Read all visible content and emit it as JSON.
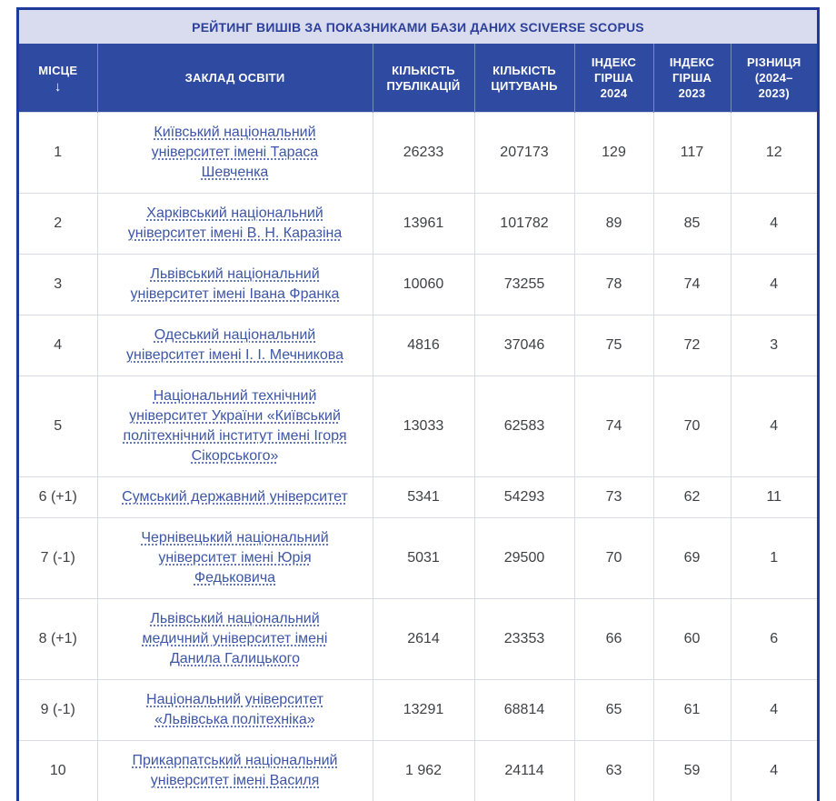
{
  "title": "РЕЙТИНГ ВИШІВ ЗА ПОКАЗНИКАМИ БАЗИ ДАНИХ SCIVERSE SCOPUS",
  "colors": {
    "outer_border": "#1f3a9b",
    "header_bg": "#2f4aa1",
    "header_text": "#ffffff",
    "title_bg": "#d8dcee",
    "title_text": "#2c3f9b",
    "link_text": "#3d56a6",
    "cell_text": "#3f4043",
    "grid_line": "#d8dbe5"
  },
  "table": {
    "sort_arrow": "↓",
    "columns": [
      {
        "label": "МІСЦЕ"
      },
      {
        "label": "ЗАКЛАД ОСВІТИ"
      },
      {
        "label": "КІЛЬКІСТЬ\nПУБЛІКАЦІЙ"
      },
      {
        "label": "КІЛЬКІСТЬ\nЦИТУВАНЬ"
      },
      {
        "label": "ІНДЕКС\nГІРША\n2024"
      },
      {
        "label": "ІНДЕКС\nГІРША\n2023"
      },
      {
        "label": "РІЗНИЦЯ\n(2024–\n2023)"
      }
    ],
    "rows": [
      {
        "place": "1",
        "name": "Київський національний\nуніверситет імені Тараса\nШевченка",
        "publications": "26233",
        "citations": "207173",
        "h2024": "129",
        "h2023": "117",
        "diff": "12"
      },
      {
        "place": "2",
        "name": "Харківський національний\nуніверситет імені В. Н. Каразіна",
        "publications": "13961",
        "citations": "101782",
        "h2024": "89",
        "h2023": "85",
        "diff": "4"
      },
      {
        "place": "3",
        "name": "Львівський національний\nуніверситет імені Івана Франка",
        "publications": "10060",
        "citations": "73255",
        "h2024": "78",
        "h2023": "74",
        "diff": "4"
      },
      {
        "place": "4",
        "name": "Одеський національний\nуніверситет імені І. І. Мечникова",
        "publications": "4816",
        "citations": "37046",
        "h2024": "75",
        "h2023": "72",
        "diff": "3"
      },
      {
        "place": "5",
        "name": "Національний технічний\nуніверситет України «Київський\nполітехнічний інститут імені Ігоря\nСікорського»",
        "publications": "13033",
        "citations": "62583",
        "h2024": "74",
        "h2023": "70",
        "diff": "4"
      },
      {
        "place": "6 (+1)",
        "name": "Сумський державний університет",
        "publications": "5341",
        "citations": "54293",
        "h2024": "73",
        "h2023": "62",
        "diff": "11"
      },
      {
        "place": "7 (-1)",
        "name": "Чернівецький національний\nуніверситет імені Юрія\nФедьковича",
        "publications": "5031",
        "citations": "29500",
        "h2024": "70",
        "h2023": "69",
        "diff": "1"
      },
      {
        "place": "8 (+1)",
        "name": "Львівський національний\nмедичний університет імені\nДанила Галицького",
        "publications": "2614",
        "citations": "23353",
        "h2024": "66",
        "h2023": "60",
        "diff": "6"
      },
      {
        "place": "9 (-1)",
        "name": "Національний університет\n«Львівська політехніка»",
        "publications": "13291",
        "citations": "68814",
        "h2024": "65",
        "h2023": "61",
        "diff": "4"
      },
      {
        "place": "10",
        "name": "Прикарпатський національний\nуніверситет імені Василя",
        "publications": "1 962",
        "citations": "24114",
        "h2024": "63",
        "h2023": "59",
        "diff": "4"
      }
    ]
  }
}
